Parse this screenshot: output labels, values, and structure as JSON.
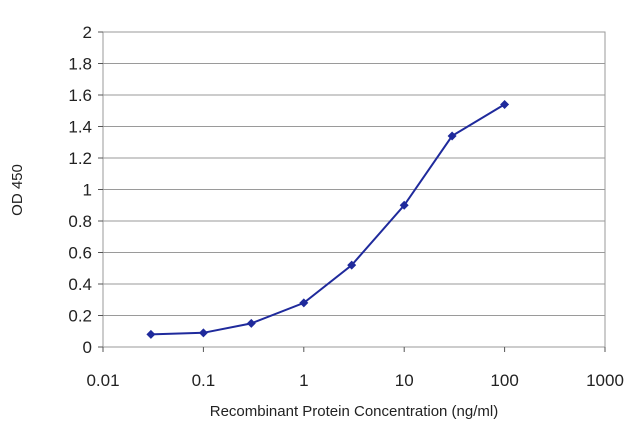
{
  "chart_data": {
    "type": "line",
    "xlabel": "Recombinant Protein Concentration (ng/ml)",
    "ylabel": "OD 450",
    "x_scale": "log",
    "xlim": [
      0.01,
      1000
    ],
    "ylim": [
      0,
      2
    ],
    "x_ticks": [
      "0.01",
      "0.1",
      "1",
      "10",
      "100",
      "1000"
    ],
    "y_ticks": [
      "0",
      "0.2",
      "0.4",
      "0.6",
      "0.8",
      "1",
      "1.2",
      "1.4",
      "1.6",
      "1.8",
      "2"
    ],
    "grid": "horizontal",
    "series": [
      {
        "x": [
          0.03,
          0.1,
          0.3,
          1,
          3,
          10,
          30,
          100
        ],
        "y": [
          0.08,
          0.09,
          0.15,
          0.28,
          0.52,
          0.9,
          1.34,
          1.54
        ],
        "color": "#1f2a9c"
      }
    ]
  }
}
